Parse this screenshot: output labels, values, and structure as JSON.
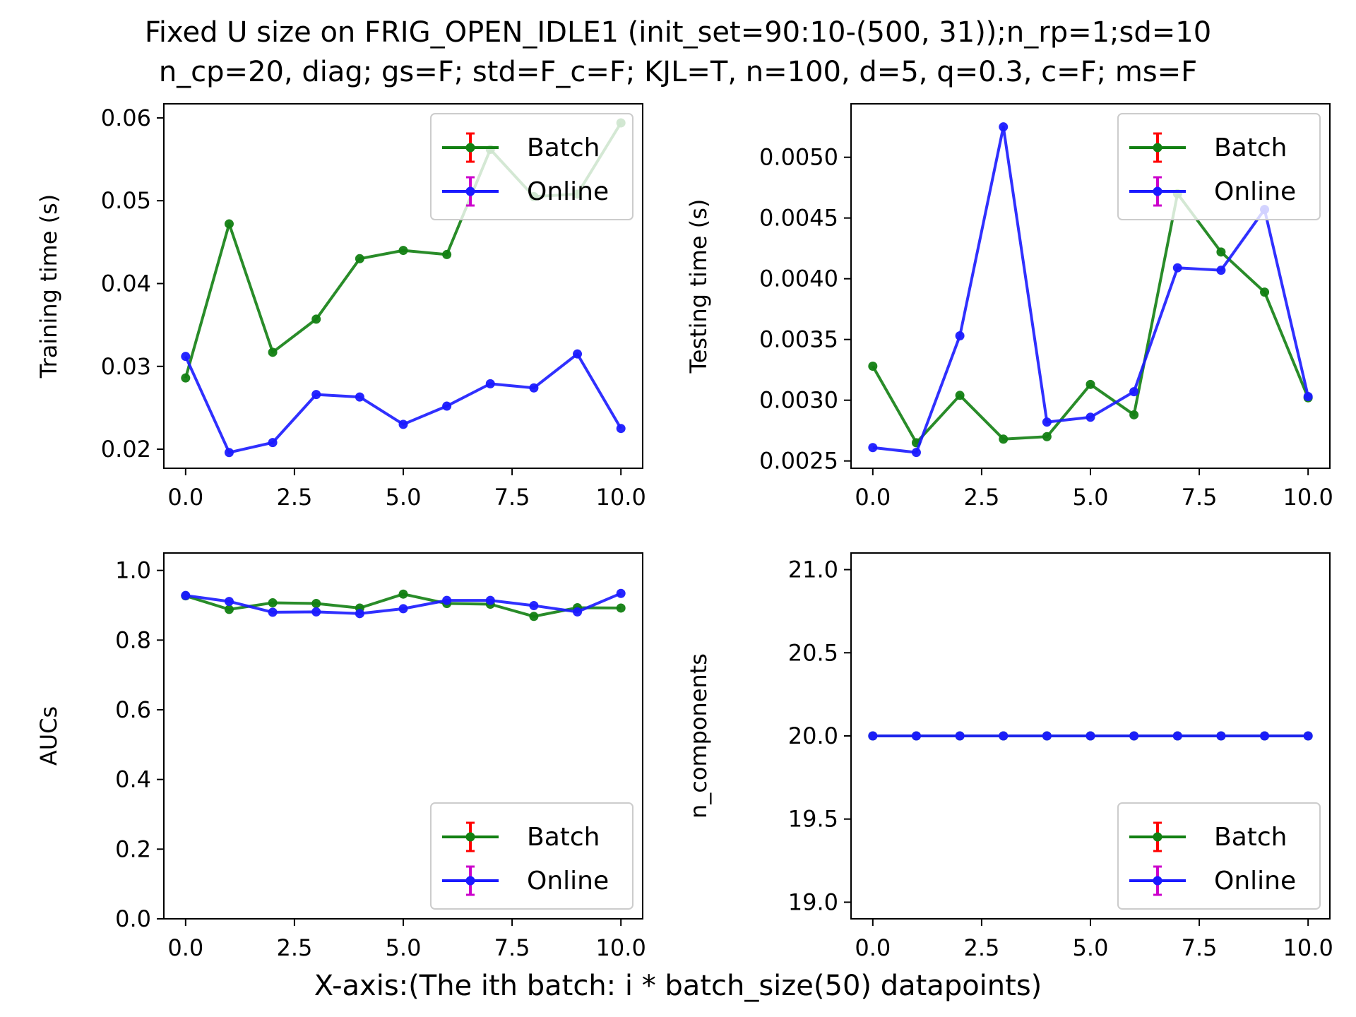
{
  "figure": {
    "title_line1": "Fixed U size on FRIG_OPEN_IDLE1 (init_set=90:10-(500, 31));n_rp=1;sd=10",
    "title_line2": "n_cp=20, diag; gs=F; std=F_c=F; KJL=T, n=100, d=5, q=0.3, c=F; ms=F",
    "xlabel": "X-axis:(The ith batch: i * batch_size(50) datapoints)"
  },
  "colors": {
    "batch_line": "#128012",
    "online_line": "#1a1aff",
    "batch_errorbar": "#ff0000",
    "online_errorbar": "#cc00cc"
  },
  "chart_data": [
    {
      "type": "line",
      "ylabel": "Training time (s)",
      "xlim": [
        -0.5,
        10.5
      ],
      "ylim": [
        0.0177,
        0.0617
      ],
      "xticks": [
        "0.0",
        "2.5",
        "5.0",
        "7.5",
        "10.0"
      ],
      "xtick_values": [
        0,
        2.5,
        5,
        7.5,
        10
      ],
      "yticks": [
        "0.02",
        "0.03",
        "0.04",
        "0.05",
        "0.06"
      ],
      "ytick_values": [
        0.02,
        0.03,
        0.04,
        0.05,
        0.06
      ],
      "legend_position": "upper right",
      "x": [
        0,
        1,
        2,
        3,
        4,
        5,
        6,
        7,
        8,
        9,
        10
      ],
      "series": [
        {
          "name": "Batch",
          "values": [
            0.0286,
            0.0472,
            0.0317,
            0.0357,
            0.043,
            0.044,
            0.0435,
            0.0562,
            0.0505,
            0.0508,
            0.0594
          ]
        },
        {
          "name": "Online",
          "values": [
            0.0312,
            0.0196,
            0.0208,
            0.0266,
            0.0263,
            0.023,
            0.0252,
            0.0279,
            0.0274,
            0.0315,
            0.0225
          ]
        }
      ]
    },
    {
      "type": "line",
      "ylabel": "Testing time (s)",
      "xlim": [
        -0.5,
        10.5
      ],
      "ylim": [
        0.00244,
        0.00544
      ],
      "xticks": [
        "0.0",
        "2.5",
        "5.0",
        "7.5",
        "10.0"
      ],
      "xtick_values": [
        0,
        2.5,
        5,
        7.5,
        10
      ],
      "yticks": [
        "0.0025",
        "0.0030",
        "0.0035",
        "0.0040",
        "0.0045",
        "0.0050"
      ],
      "ytick_values": [
        0.0025,
        0.003,
        0.0035,
        0.004,
        0.0045,
        0.005
      ],
      "legend_position": "upper right",
      "x": [
        0,
        1,
        2,
        3,
        4,
        5,
        6,
        7,
        8,
        9,
        10
      ],
      "series": [
        {
          "name": "Batch",
          "values": [
            0.00328,
            0.00265,
            0.00304,
            0.00268,
            0.0027,
            0.00313,
            0.00288,
            0.0047,
            0.00422,
            0.00389,
            0.00302
          ]
        },
        {
          "name": "Online",
          "values": [
            0.00261,
            0.00257,
            0.00353,
            0.00525,
            0.00282,
            0.00286,
            0.00307,
            0.00409,
            0.00407,
            0.00457,
            0.00303
          ]
        }
      ]
    },
    {
      "type": "line",
      "ylabel": "AUCs",
      "xlim": [
        -0.5,
        10.5
      ],
      "ylim": [
        0.0,
        1.05
      ],
      "xticks": [
        "0.0",
        "2.5",
        "5.0",
        "7.5",
        "10.0"
      ],
      "xtick_values": [
        0,
        2.5,
        5,
        7.5,
        10
      ],
      "yticks": [
        "0.0",
        "0.2",
        "0.4",
        "0.6",
        "0.8",
        "1.0"
      ],
      "ytick_values": [
        0,
        0.2,
        0.4,
        0.6,
        0.8,
        1.0
      ],
      "legend_position": "lower right",
      "x": [
        0,
        1,
        2,
        3,
        4,
        5,
        6,
        7,
        8,
        9,
        10
      ],
      "series": [
        {
          "name": "Batch",
          "values": [
            0.927,
            0.888,
            0.907,
            0.905,
            0.892,
            0.932,
            0.905,
            0.903,
            0.868,
            0.893,
            0.892
          ]
        },
        {
          "name": "Online",
          "values": [
            0.928,
            0.911,
            0.88,
            0.881,
            0.876,
            0.89,
            0.914,
            0.914,
            0.899,
            0.881,
            0.934
          ]
        }
      ]
    },
    {
      "type": "line",
      "ylabel": "n_components",
      "xlim": [
        -0.5,
        10.5
      ],
      "ylim": [
        18.9,
        21.1
      ],
      "xticks": [
        "0.0",
        "2.5",
        "5.0",
        "7.5",
        "10.0"
      ],
      "xtick_values": [
        0,
        2.5,
        5,
        7.5,
        10
      ],
      "yticks": [
        "19.0",
        "19.5",
        "20.0",
        "20.5",
        "21.0"
      ],
      "ytick_values": [
        19.0,
        19.5,
        20.0,
        20.5,
        21.0
      ],
      "legend_position": "lower right",
      "x": [
        0,
        1,
        2,
        3,
        4,
        5,
        6,
        7,
        8,
        9,
        10
      ],
      "series": [
        {
          "name": "Batch",
          "values": [
            20,
            20,
            20,
            20,
            20,
            20,
            20,
            20,
            20,
            20,
            20
          ]
        },
        {
          "name": "Online",
          "values": [
            20,
            20,
            20,
            20,
            20,
            20,
            20,
            20,
            20,
            20,
            20
          ]
        }
      ]
    }
  ]
}
